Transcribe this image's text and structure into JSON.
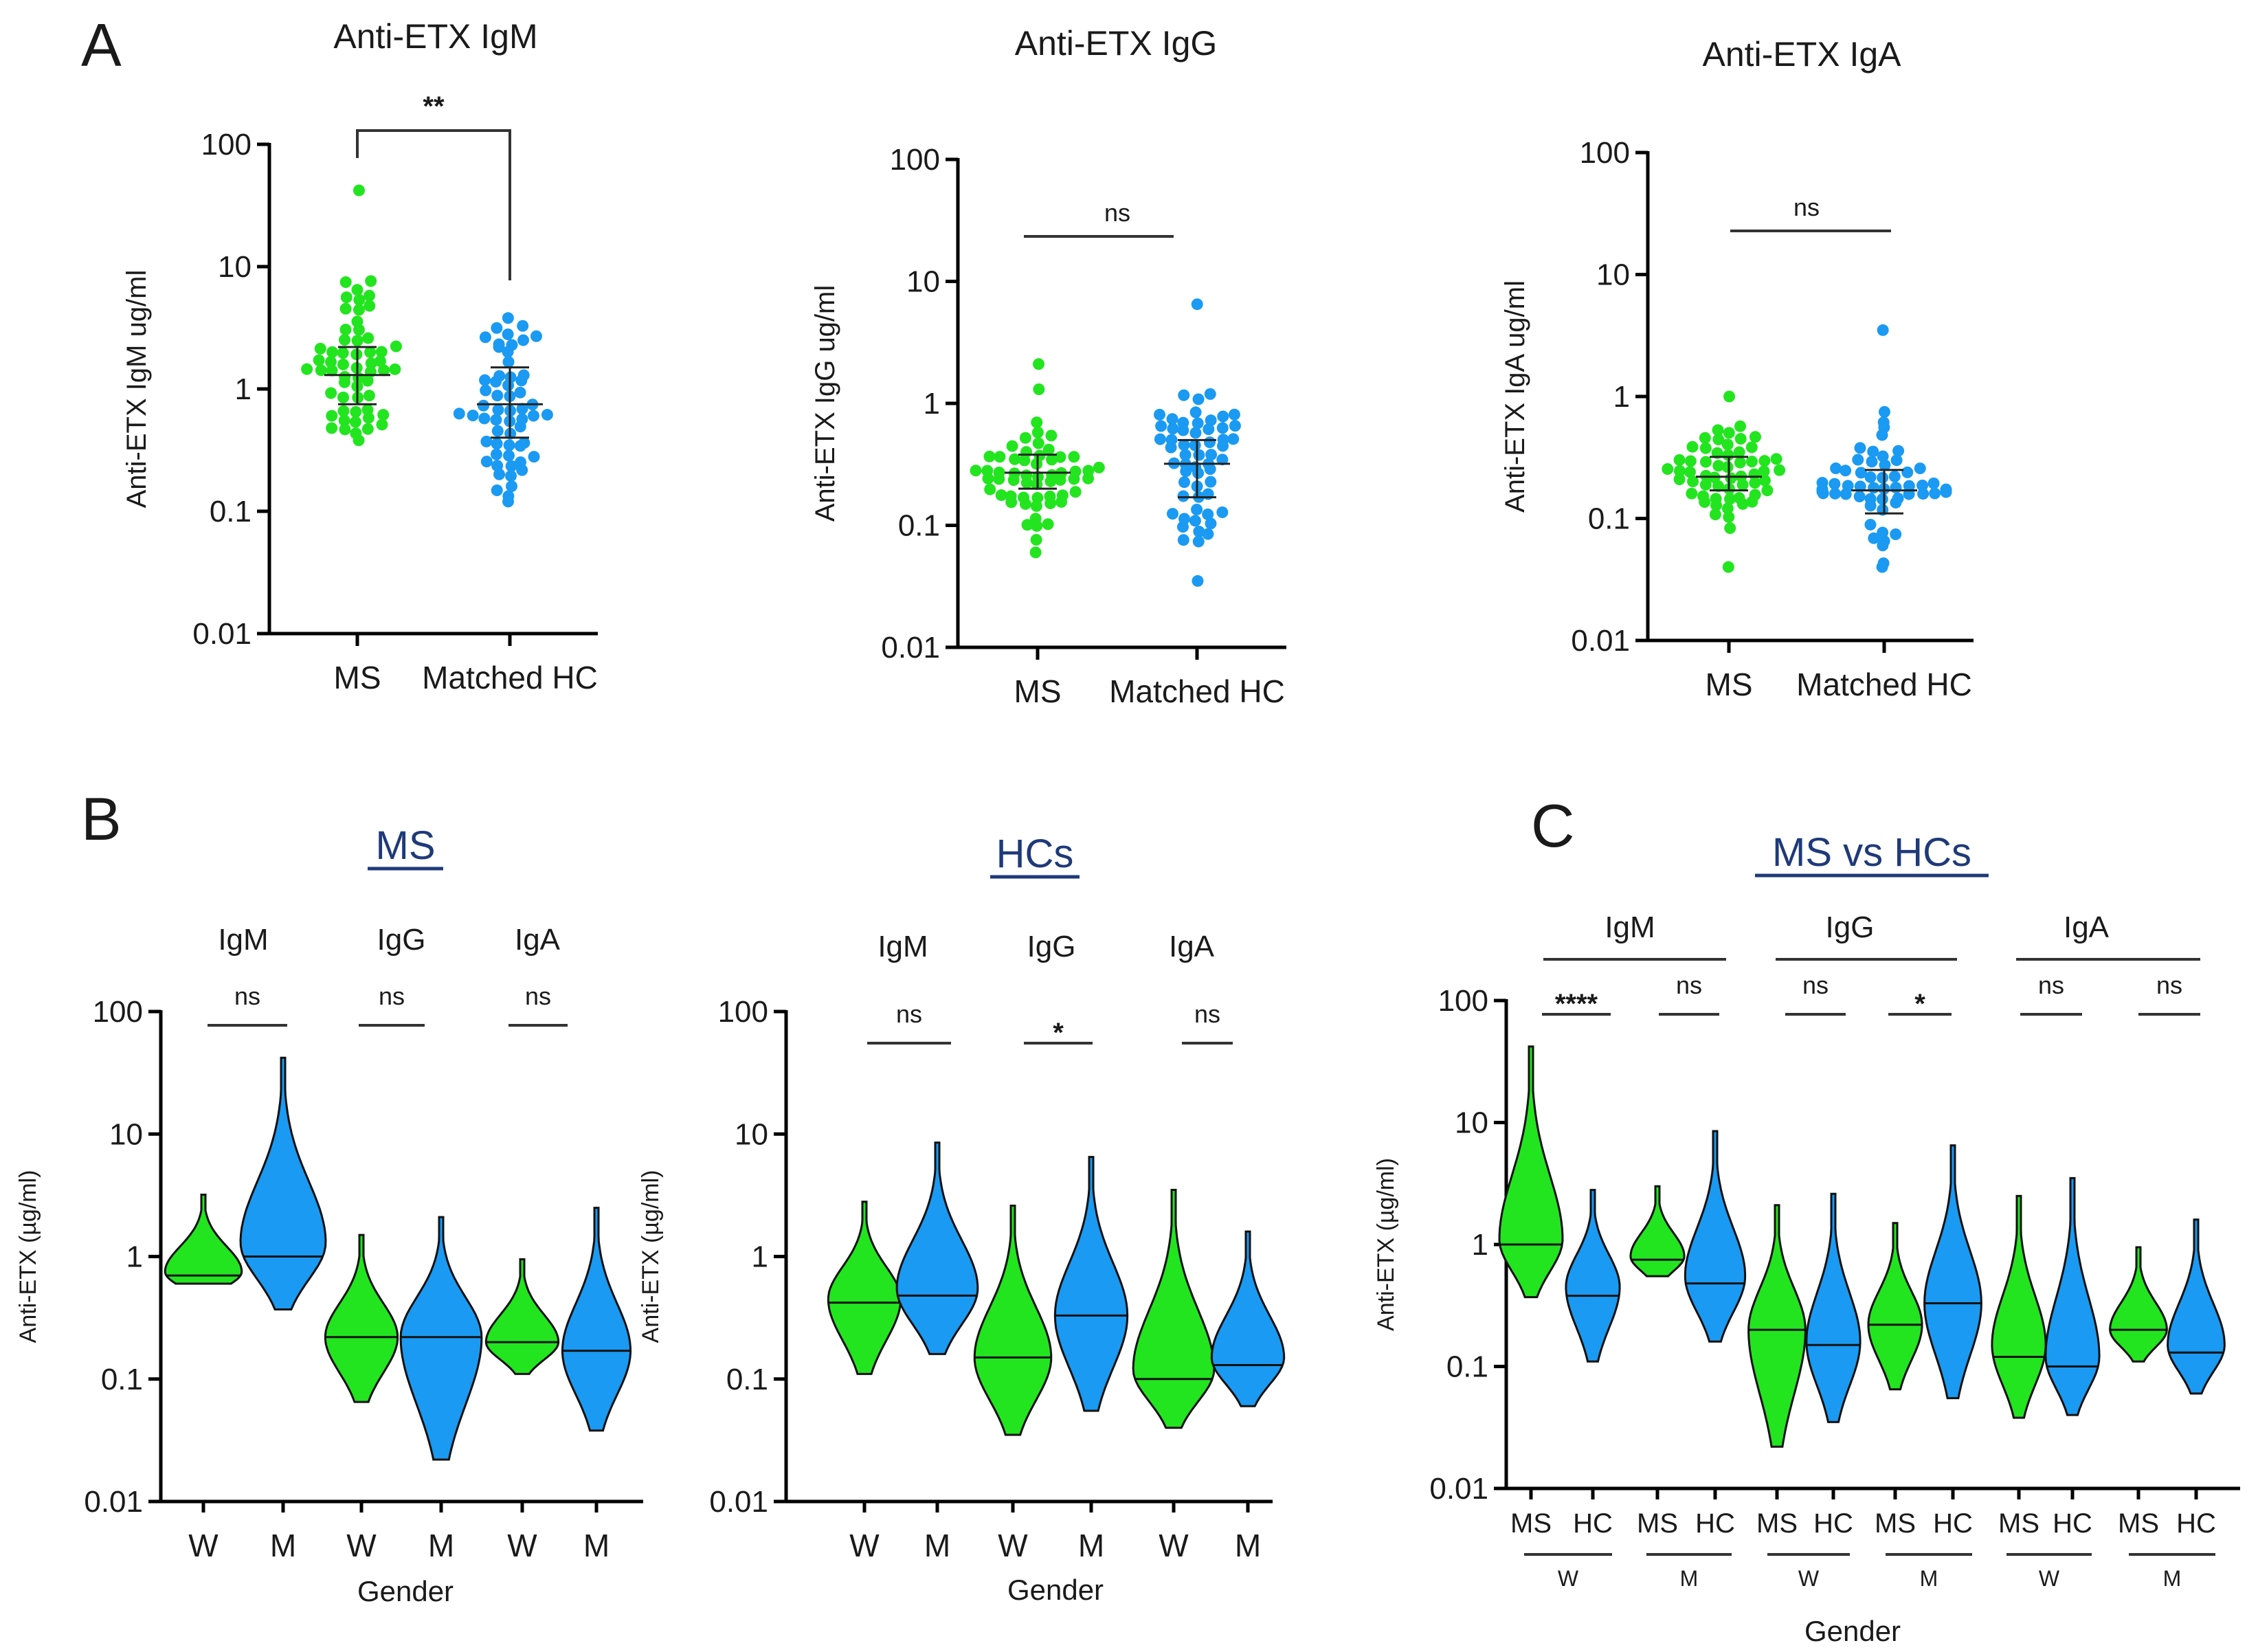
{
  "colors": {
    "ms": "#22e51f",
    "hc": "#1a9af2",
    "title_blue": "#1f3a7a"
  },
  "panel_letters": [
    "A",
    "B",
    "C"
  ],
  "chart_data": [
    {
      "id": "A1",
      "type": "scatter",
      "title": "Anti-ETX IgM",
      "ylabel": "Anti-ETX IgM ug/ml",
      "scale": "log",
      "ylim": [
        0.01,
        100
      ],
      "ticks": [
        "0.01",
        "0.1",
        "1",
        "10",
        "100"
      ],
      "categories": [
        "MS",
        "Matched HC"
      ],
      "series": [
        {
          "name": "MS",
          "median": 1.3,
          "q1": 0.75,
          "q3": 2.2,
          "min": 0.38,
          "max": 42,
          "n": 58
        },
        {
          "name": "Matched HC",
          "median": 0.75,
          "q1": 0.4,
          "q3": 1.5,
          "min": 0.12,
          "max": 3.8,
          "n": 58
        }
      ],
      "significance": "**"
    },
    {
      "id": "A2",
      "type": "scatter",
      "title": "Anti-ETX IgG",
      "ylabel": "Anti-ETX IgG ug/ml",
      "scale": "log",
      "ylim": [
        0.01,
        100
      ],
      "ticks": [
        "0.01",
        "0.1",
        "1",
        "10",
        "100"
      ],
      "categories": [
        "MS",
        "Matched HC"
      ],
      "series": [
        {
          "name": "MS",
          "median": 0.27,
          "q1": 0.2,
          "q3": 0.38,
          "min": 0.06,
          "max": 2.1,
          "n": 58
        },
        {
          "name": "Matched HC",
          "median": 0.32,
          "q1": 0.17,
          "q3": 0.5,
          "min": 0.035,
          "max": 6.5,
          "n": 58
        }
      ],
      "significance": "ns"
    },
    {
      "id": "A3",
      "type": "scatter",
      "title": "Anti-ETX IgA",
      "ylabel": "Anti-ETX IgA ug/ml",
      "scale": "log",
      "ylim": [
        0.01,
        100
      ],
      "ticks": [
        "0.01",
        "0.1",
        "1",
        "10",
        "100"
      ],
      "categories": [
        "MS",
        "Matched HC"
      ],
      "series": [
        {
          "name": "MS",
          "median": 0.22,
          "q1": 0.17,
          "q3": 0.32,
          "min": 0.04,
          "max": 1.0,
          "n": 58
        },
        {
          "name": "Matched HC",
          "median": 0.17,
          "q1": 0.11,
          "q3": 0.25,
          "min": 0.04,
          "max": 3.5,
          "n": 58
        }
      ],
      "significance": "ns"
    },
    {
      "id": "B1",
      "type": "violin",
      "title": "MS",
      "ylabel": "Anti-ETX (µg/ml)",
      "xlabel": "Gender",
      "scale": "log",
      "ylim": [
        0.01,
        100
      ],
      "ticks": [
        "0.01",
        "0.1",
        "1",
        "10",
        "100"
      ],
      "groups": [
        "IgM",
        "IgG",
        "IgA"
      ],
      "categories": [
        "W",
        "M",
        "W",
        "M",
        "W",
        "M"
      ],
      "series": [
        {
          "name": "IgM W",
          "color": "ms",
          "min": 0.6,
          "max": 3.2,
          "median": 0.7,
          "mode": 0.75,
          "width": 0.9
        },
        {
          "name": "IgM M",
          "color": "hc",
          "min": 0.37,
          "max": 42,
          "median": 1.0,
          "mode": 1.3,
          "width": 1.0
        },
        {
          "name": "IgG W",
          "color": "ms",
          "min": 0.065,
          "max": 1.5,
          "median": 0.22,
          "mode": 0.22,
          "width": 0.85
        },
        {
          "name": "IgG M",
          "color": "hc",
          "min": 0.022,
          "max": 2.1,
          "median": 0.22,
          "mode": 0.22,
          "width": 0.95
        },
        {
          "name": "IgA W",
          "color": "ms",
          "min": 0.11,
          "max": 0.95,
          "median": 0.2,
          "mode": 0.2,
          "width": 0.85
        },
        {
          "name": "IgA M",
          "color": "hc",
          "min": 0.038,
          "max": 2.5,
          "median": 0.17,
          "mode": 0.17,
          "width": 0.8
        }
      ],
      "significance": [
        "ns",
        "ns",
        "ns"
      ]
    },
    {
      "id": "B2",
      "type": "violin",
      "title": "HCs",
      "ylabel": "Anti-ETX (µg/ml)",
      "xlabel": "Gender",
      "scale": "log",
      "ylim": [
        0.01,
        100
      ],
      "ticks": [
        "0.01",
        "0.1",
        "1",
        "10",
        "100"
      ],
      "groups": [
        "IgM",
        "IgG",
        "IgA"
      ],
      "categories": [
        "W",
        "M",
        "W",
        "M",
        "W",
        "M"
      ],
      "series": [
        {
          "name": "IgM W",
          "color": "ms",
          "min": 0.11,
          "max": 2.8,
          "median": 0.42,
          "mode": 0.45,
          "width": 0.85
        },
        {
          "name": "IgM M",
          "color": "hc",
          "min": 0.16,
          "max": 8.5,
          "median": 0.48,
          "mode": 0.55,
          "width": 0.95
        },
        {
          "name": "IgG W",
          "color": "ms",
          "min": 0.035,
          "max": 2.6,
          "median": 0.15,
          "mode": 0.15,
          "width": 0.9
        },
        {
          "name": "IgG M",
          "color": "hc",
          "min": 0.055,
          "max": 6.5,
          "median": 0.33,
          "mode": 0.33,
          "width": 0.85
        },
        {
          "name": "IgA W",
          "color": "ms",
          "min": 0.04,
          "max": 3.5,
          "median": 0.1,
          "mode": 0.12,
          "width": 0.95
        },
        {
          "name": "IgA M",
          "color": "hc",
          "min": 0.06,
          "max": 1.6,
          "median": 0.13,
          "mode": 0.15,
          "width": 0.85
        }
      ],
      "significance": [
        "ns",
        "*",
        "ns"
      ]
    },
    {
      "id": "C",
      "type": "violin",
      "title": "MS vs HCs",
      "ylabel": "Anti-ETX (µg/ml)",
      "xlabel": "Gender",
      "scale": "log",
      "ylim": [
        0.01,
        100
      ],
      "ticks": [
        "0.01",
        "0.1",
        "1",
        "10",
        "100"
      ],
      "groups": [
        "IgM",
        "IgG",
        "IgA"
      ],
      "subgroups": [
        "W",
        "M",
        "W",
        "M",
        "W",
        "M"
      ],
      "categories": [
        "MS",
        "HC",
        "MS",
        "HC",
        "MS",
        "HC",
        "MS",
        "HC",
        "MS",
        "HC",
        "MS",
        "HC"
      ],
      "series": [
        {
          "name": "IgM W MS",
          "color": "ms",
          "min": 0.37,
          "max": 42,
          "median": 1.0,
          "mode": 1.1,
          "width": 1.0
        },
        {
          "name": "IgM W HC",
          "color": "hc",
          "min": 0.11,
          "max": 2.8,
          "median": 0.38,
          "mode": 0.45,
          "width": 0.85
        },
        {
          "name": "IgM M MS",
          "color": "ms",
          "min": 0.55,
          "max": 3.0,
          "median": 0.75,
          "mode": 0.8,
          "width": 0.85
        },
        {
          "name": "IgM M HC",
          "color": "hc",
          "min": 0.16,
          "max": 8.5,
          "median": 0.48,
          "mode": 0.55,
          "width": 0.95
        },
        {
          "name": "IgG W MS",
          "color": "ms",
          "min": 0.022,
          "max": 2.1,
          "median": 0.2,
          "mode": 0.2,
          "width": 0.9
        },
        {
          "name": "IgG W HC",
          "color": "hc",
          "min": 0.035,
          "max": 2.6,
          "median": 0.15,
          "mode": 0.16,
          "width": 0.85
        },
        {
          "name": "IgG M MS",
          "color": "ms",
          "min": 0.065,
          "max": 1.5,
          "median": 0.22,
          "mode": 0.22,
          "width": 0.85
        },
        {
          "name": "IgG M HC",
          "color": "hc",
          "min": 0.055,
          "max": 6.5,
          "median": 0.33,
          "mode": 0.33,
          "width": 0.9
        },
        {
          "name": "IgA W MS",
          "color": "ms",
          "min": 0.038,
          "max": 2.5,
          "median": 0.12,
          "mode": 0.15,
          "width": 0.85
        },
        {
          "name": "IgA W HC",
          "color": "hc",
          "min": 0.04,
          "max": 3.5,
          "median": 0.1,
          "mode": 0.12,
          "width": 0.85
        },
        {
          "name": "IgA M MS",
          "color": "ms",
          "min": 0.11,
          "max": 0.95,
          "median": 0.2,
          "mode": 0.2,
          "width": 0.9
        },
        {
          "name": "IgA M HC",
          "color": "hc",
          "min": 0.06,
          "max": 1.6,
          "median": 0.13,
          "mode": 0.15,
          "width": 0.9
        }
      ],
      "significance": [
        "****",
        "ns",
        "ns",
        "*",
        "ns",
        "ns"
      ]
    }
  ]
}
